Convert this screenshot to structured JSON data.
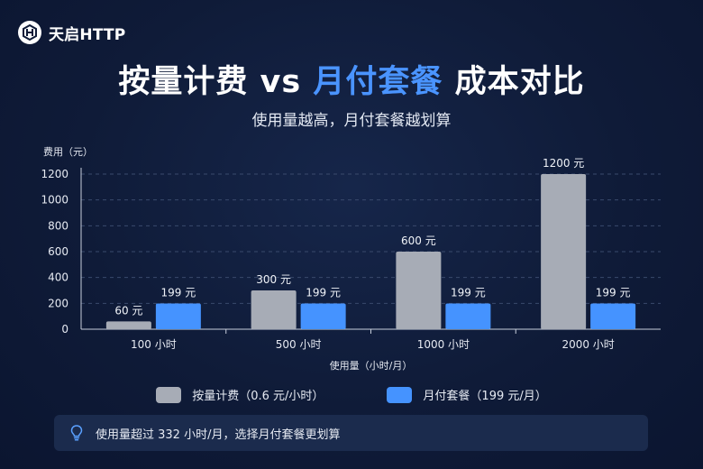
{
  "brand": {
    "name": "天启HTTP",
    "logo_icon": "hex-logo-icon"
  },
  "header": {
    "title_part1": "按量计费 vs ",
    "title_accent": "月付套餐",
    "title_part2": " 成本对比",
    "subtitle": "使用量越高，月付套餐越划算"
  },
  "colors": {
    "pay_as_you_go": "#a7acb6",
    "monthly": "#4593ff",
    "accent": "#4a94ff"
  },
  "chart_data": {
    "type": "bar",
    "categories": [
      "100 小时",
      "500 小时",
      "1000 小时",
      "2000 小时"
    ],
    "series": [
      {
        "name": "按量计费（0.6 元/小时）",
        "values": [
          60,
          300,
          600,
          1200
        ],
        "labels": [
          "60 元",
          "300 元",
          "600 元",
          "1200 元"
        ]
      },
      {
        "name": "月付套餐（199 元/月）",
        "values": [
          199,
          199,
          199,
          199
        ],
        "labels": [
          "199 元",
          "199 元",
          "199 元",
          "199 元"
        ]
      }
    ],
    "ylabel": "费用（元）",
    "xlabel": "使用量（小时/月）",
    "ylim": [
      0,
      1200
    ],
    "yticks": [
      0,
      200,
      400,
      600,
      800,
      1000,
      1200
    ],
    "grid": true,
    "legend_position": "bottom"
  },
  "tip": {
    "icon": "lightbulb-icon",
    "text": "使用量超过 332 小时/月，选择月付套餐更划算"
  }
}
